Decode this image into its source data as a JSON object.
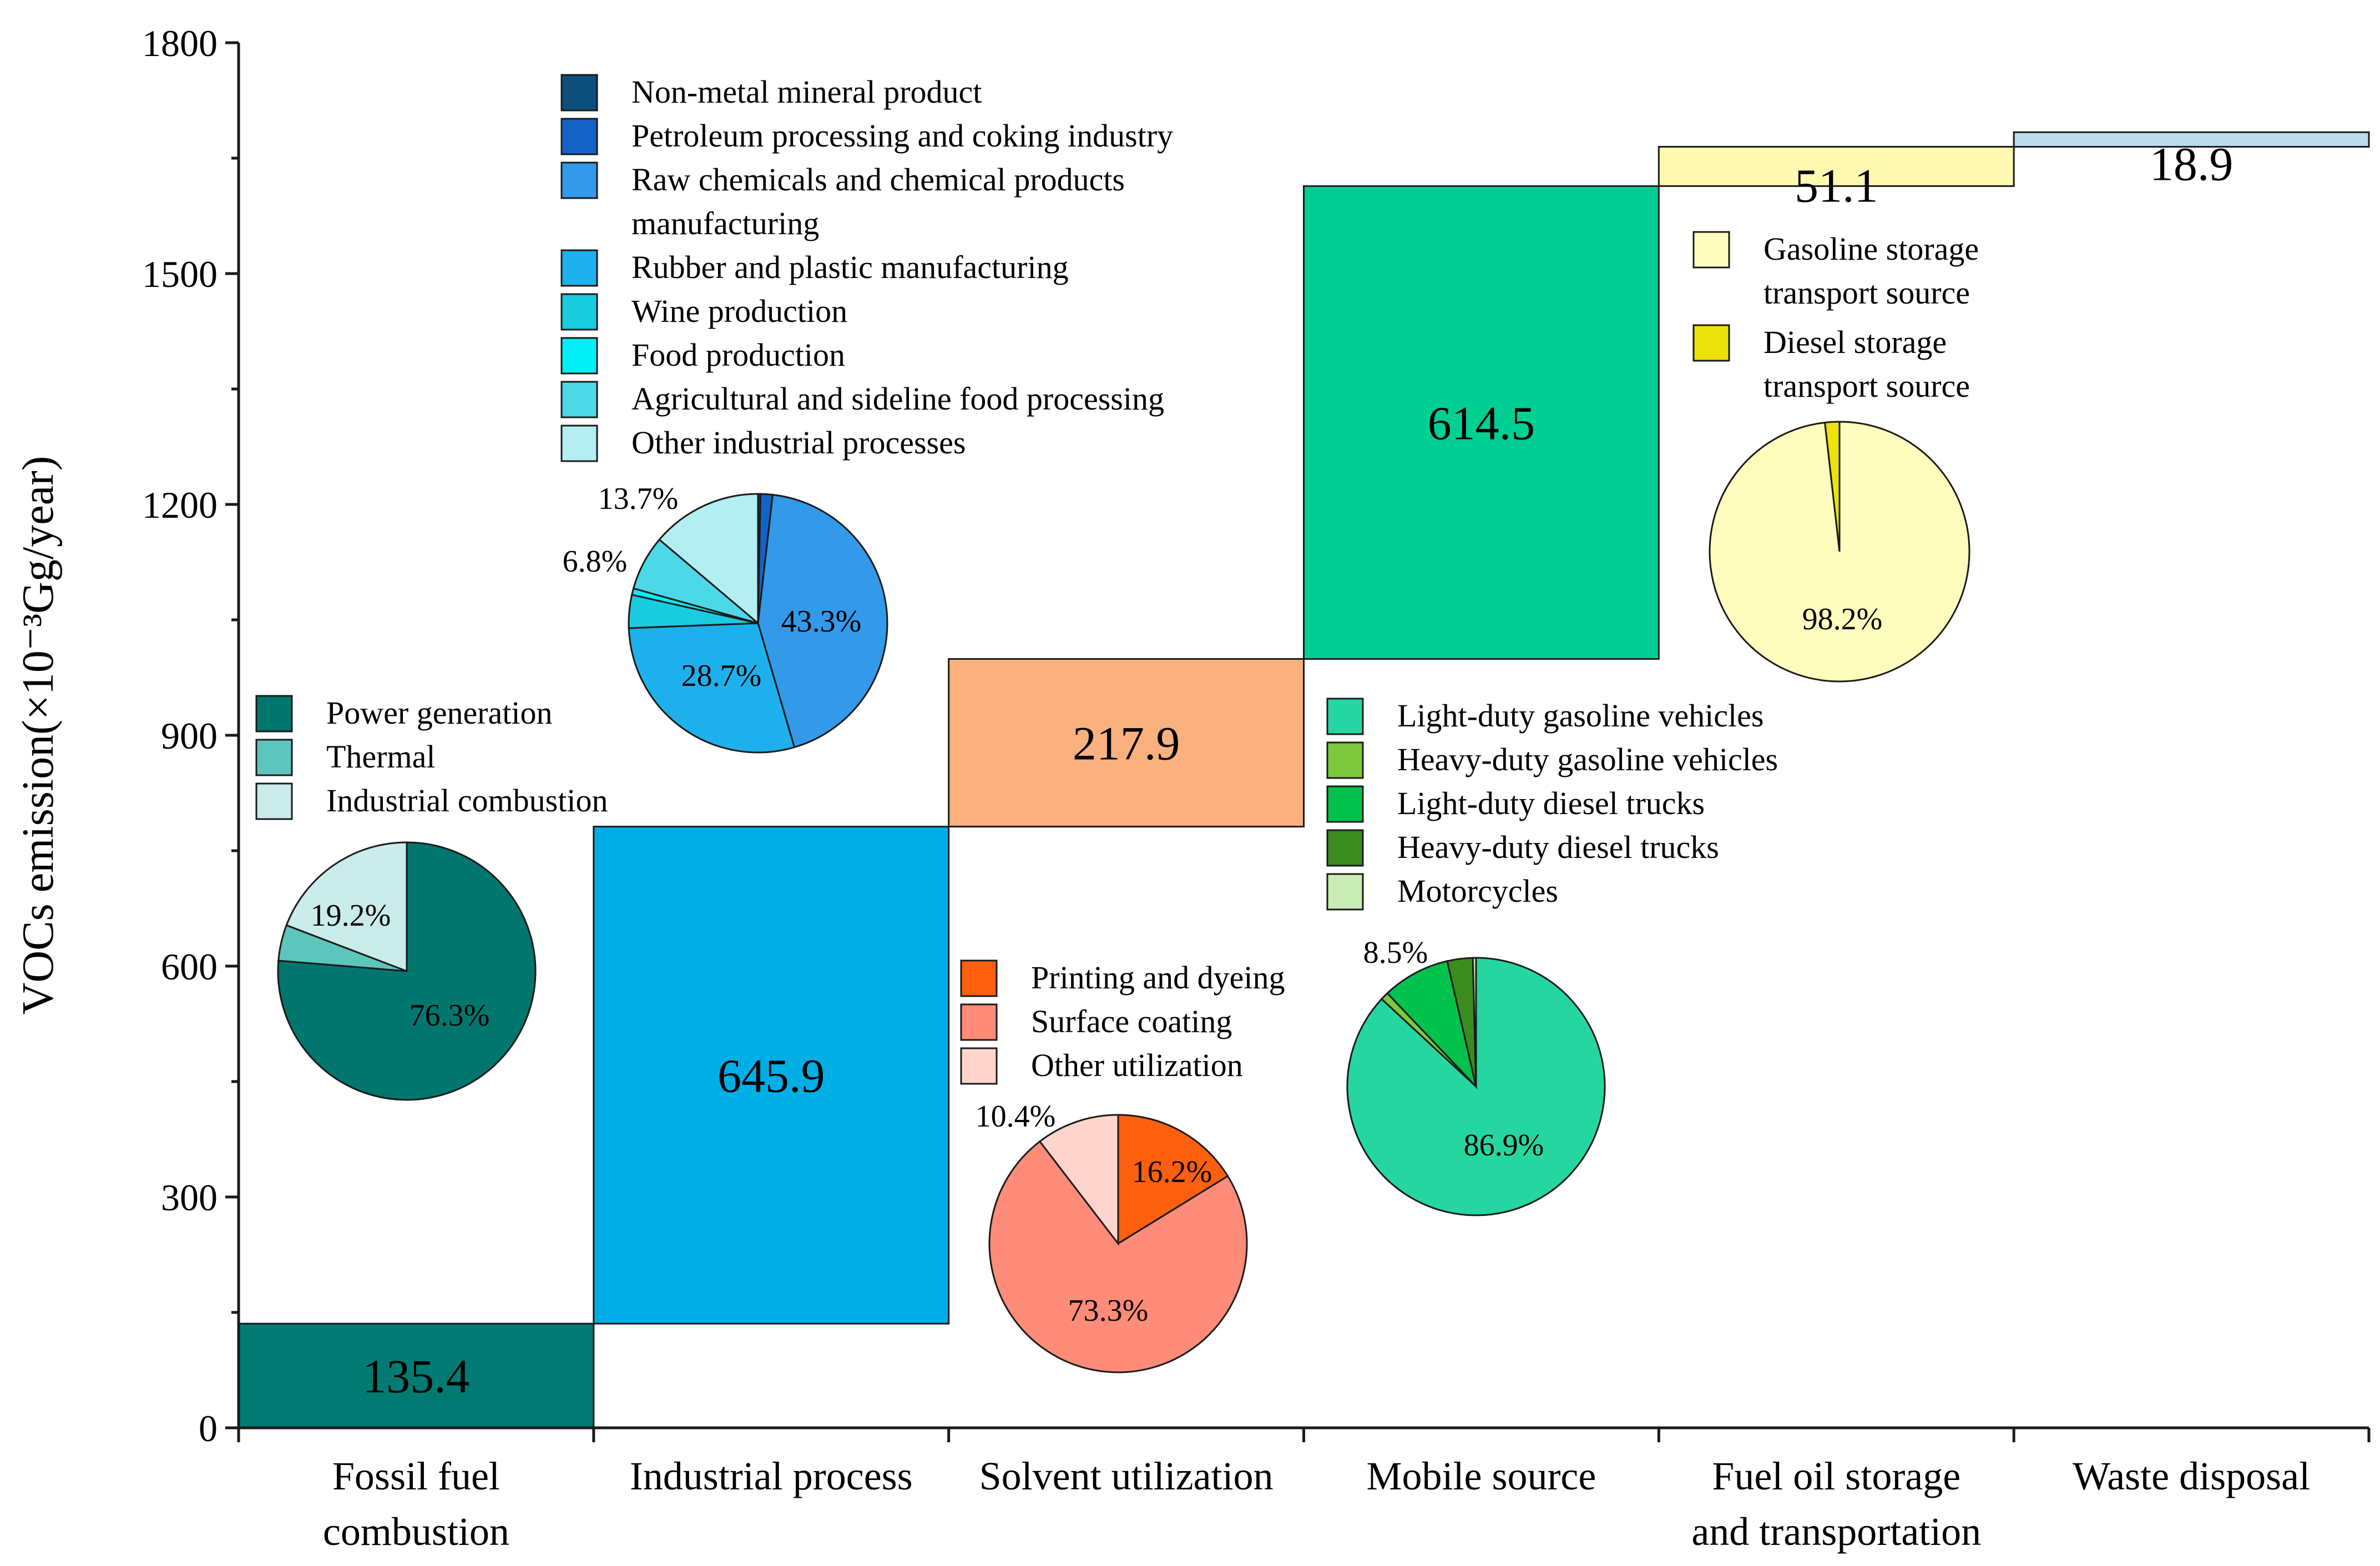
{
  "chart_data": {
    "type": "waterfall",
    "ylabel": "VOCs emission(×10⁻³Gg/year)",
    "ylim": [
      0,
      1800
    ],
    "yticks": [
      0,
      300,
      600,
      900,
      1200,
      1500,
      1800
    ],
    "categories": [
      [
        "Fossil fuel",
        "combustion"
      ],
      [
        "Industrial process"
      ],
      [
        "Solvent utilization"
      ],
      [
        "Mobile source"
      ],
      [
        "Fuel oil storage",
        "and transportation"
      ],
      [
        "Waste disposal"
      ]
    ],
    "values": [
      135.4,
      645.9,
      217.9,
      614.5,
      51.1,
      18.9
    ],
    "value_labels": [
      "135.4",
      "645.9",
      "217.9",
      "614.5",
      "51.1",
      "18.9"
    ],
    "colors": [
      "#007A73",
      "#00AEE6",
      "#FBB17E",
      "#00CF94",
      "#FFFAB0",
      "#BCDCEC"
    ],
    "pies": [
      {
        "category": "Fossil fuel combustion",
        "slices": [
          {
            "name": "Power generation",
            "value": 76.3,
            "color": "#00766E"
          },
          {
            "name": "Thermal",
            "value": 4.5,
            "color": "#5EC5BD"
          },
          {
            "name": "Industrial combustion",
            "value": 19.2,
            "color": "#C9EBE9"
          }
        ],
        "labels": [
          "76.3%",
          "19.2%"
        ]
      },
      {
        "category": "Industrial process",
        "slices": [
          {
            "name": "Non-metal mineral product",
            "value": 0.3,
            "color": "#0D4F7C"
          },
          {
            "name": "Petroleum processing and coking industry",
            "value": 1.5,
            "color": "#1363C6"
          },
          {
            "name": "Raw chemicals and chemical products manufacturing",
            "value": 43.3,
            "color": "#3399E9"
          },
          {
            "name": "Rubber and plastic manufacturing",
            "value": 28.7,
            "color": "#1DB0EC"
          },
          {
            "name": "Wine production",
            "value": 4.1,
            "color": "#1ACCE0"
          },
          {
            "name": "Food production",
            "value": 0.8,
            "color": "#00F0F5"
          },
          {
            "name": "Agricultural and sideline food processing",
            "value": 6.8,
            "color": "#4CD8E7"
          },
          {
            "name": "Other industrial processes",
            "value": 13.7,
            "color": "#B3EEF2"
          }
        ],
        "labels": [
          "43.3%",
          "28.7%",
          "6.8%",
          "13.7%"
        ]
      },
      {
        "category": "Solvent utilization",
        "slices": [
          {
            "name": "Printing and dyeing",
            "value": 16.2,
            "color": "#FC5F0E"
          },
          {
            "name": "Surface coating",
            "value": 73.3,
            "color": "#FF8B79"
          },
          {
            "name": "Other utilization",
            "value": 10.4,
            "color": "#FFD4CC"
          }
        ],
        "labels": [
          "16.2%",
          "73.3%",
          "10.4%"
        ]
      },
      {
        "category": "Mobile source",
        "slices": [
          {
            "name": "Light-duty gasoline vehicles",
            "value": 86.9,
            "color": "#25D6A1"
          },
          {
            "name": "Heavy-duty gasoline vehicles",
            "value": 1.0,
            "color": "#7EC93B"
          },
          {
            "name": "Light-duty diesel trucks",
            "value": 8.5,
            "color": "#00C24D"
          },
          {
            "name": "Heavy-duty diesel trucks",
            "value": 3.2,
            "color": "#3A8C1E"
          },
          {
            "name": "Motorcycles",
            "value": 0.4,
            "color": "#C9EBB4"
          }
        ],
        "labels": [
          "86.9%",
          "8.5%"
        ]
      },
      {
        "category": "Fuel oil storage and transportation",
        "slices": [
          {
            "name": "Gasoline storage transport source",
            "value": 98.2,
            "color": "#FFFDBD"
          },
          {
            "name": "Diesel storage transport source",
            "value": 1.8,
            "color": "#EAE20A"
          }
        ],
        "labels": [
          "98.2%"
        ]
      }
    ],
    "legends": [
      {
        "group": "Fossil fuel combustion",
        "entries": [
          {
            "label": [
              "Power generation"
            ],
            "color": "#00766E"
          },
          {
            "label": [
              "Thermal"
            ],
            "color": "#5EC5BD"
          },
          {
            "label": [
              "Industrial combustion"
            ],
            "color": "#C9EBE9"
          }
        ]
      },
      {
        "group": "Industrial process",
        "entries": [
          {
            "label": [
              "Non-metal mineral product"
            ],
            "color": "#0D4F7C"
          },
          {
            "label": [
              "Petroleum processing and coking industry"
            ],
            "color": "#1363C6"
          },
          {
            "label": [
              "Raw chemicals and chemical products",
              "manufacturing"
            ],
            "color": "#3399E9"
          },
          {
            "label": [
              "Rubber and plastic manufacturing"
            ],
            "color": "#1DB0EC"
          },
          {
            "label": [
              "Wine production"
            ],
            "color": "#1ACCE0"
          },
          {
            "label": [
              "Food production"
            ],
            "color": "#00F0F5"
          },
          {
            "label": [
              "Agricultural and sideline food processing"
            ],
            "color": "#4CD8E7"
          },
          {
            "label": [
              "Other industrial processes"
            ],
            "color": "#B3EEF2"
          }
        ]
      },
      {
        "group": "Solvent utilization",
        "entries": [
          {
            "label": [
              "Printing and dyeing"
            ],
            "color": "#FC5F0E"
          },
          {
            "label": [
              "Surface coating"
            ],
            "color": "#FF8B79"
          },
          {
            "label": [
              "Other utilization"
            ],
            "color": "#FFD4CC"
          }
        ]
      },
      {
        "group": "Mobile source",
        "entries": [
          {
            "label": [
              "Light-duty gasoline vehicles"
            ],
            "color": "#25D6A1"
          },
          {
            "label": [
              "Heavy-duty gasoline vehicles"
            ],
            "color": "#7EC93B"
          },
          {
            "label": [
              "Light-duty diesel trucks"
            ],
            "color": "#00C24D"
          },
          {
            "label": [
              "Heavy-duty diesel trucks"
            ],
            "color": "#3A8C1E"
          },
          {
            "label": [
              "Motorcycles"
            ],
            "color": "#C9EBB4"
          }
        ]
      },
      {
        "group": "Fuel oil storage and transportation",
        "entries": [
          {
            "label": [
              "Gasoline storage",
              "transport source"
            ],
            "color": "#FFFDBD"
          },
          {
            "label": [
              "Diesel storage",
              "transport source"
            ],
            "color": "#EAE20A"
          }
        ]
      }
    ]
  }
}
